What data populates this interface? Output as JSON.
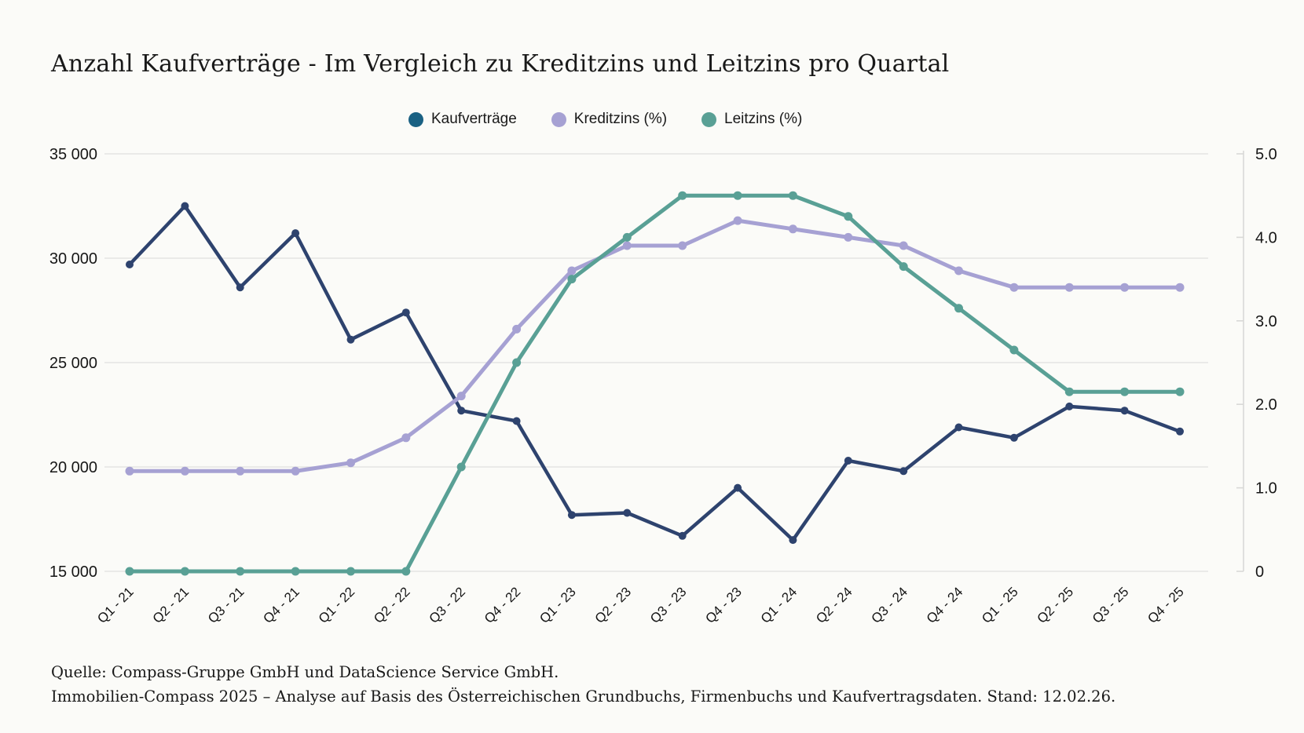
{
  "title": "Anzahl Kaufverträge - Im Vergleich zu Kreditzins und Leitzins pro Quartal",
  "legend": {
    "items": [
      {
        "label": "Kaufverträge",
        "color": "#1A6183"
      },
      {
        "label": "Kreditzins (%)",
        "color": "#A6A1D3"
      },
      {
        "label": "Leitzins (%)",
        "color": "#59A095"
      }
    ]
  },
  "chart_data": {
    "type": "line",
    "title": "Anzahl Kaufverträge - Im Vergleich zu Kreditzins und Leitzins pro Quartal",
    "categories": [
      "Q1 - 21",
      "Q2 - 21",
      "Q3 - 21",
      "Q4 - 21",
      "Q1 - 22",
      "Q2 - 22",
      "Q3 - 22",
      "Q4 - 22",
      "Q1 - 23",
      "Q2 - 23",
      "Q3 - 23",
      "Q4 - 23",
      "Q1 - 24",
      "Q2 - 24",
      "Q3 - 24",
      "Q4 - 24",
      "Q1 - 25",
      "Q2 - 25",
      "Q3 - 25",
      "Q4 - 25"
    ],
    "series": [
      {
        "name": "Kaufverträge",
        "axis": "left",
        "color": "#2E436E",
        "values": [
          29700,
          32500,
          28600,
          31200,
          26100,
          27400,
          22700,
          22200,
          17700,
          17800,
          16700,
          19000,
          16500,
          20300,
          19800,
          21900,
          21400,
          22900,
          22700,
          21700
        ]
      },
      {
        "name": "Kreditzins (%)",
        "axis": "right",
        "color": "#A6A1D3",
        "values": [
          1.2,
          1.2,
          1.2,
          1.2,
          1.3,
          1.6,
          2.1,
          2.9,
          3.6,
          3.9,
          3.9,
          4.2,
          4.1,
          4.0,
          3.9,
          3.6,
          3.4,
          3.4,
          3.4,
          3.4
        ]
      },
      {
        "name": "Leitzins (%)",
        "axis": "right",
        "color": "#59A095",
        "values": [
          0,
          0,
          0,
          0,
          0,
          0,
          1.25,
          2.5,
          3.5,
          4.0,
          4.5,
          4.5,
          4.5,
          4.25,
          3.65,
          3.15,
          2.65,
          2.15,
          2.15,
          2.15
        ]
      }
    ],
    "left_axis": {
      "min": 15000,
      "max": 35000,
      "step": 5000,
      "tick_labels": [
        "15 000",
        "20 000",
        "25 000",
        "30 000",
        "35 000"
      ]
    },
    "right_axis": {
      "min": 0,
      "max": 5,
      "step": 1,
      "tick_labels": [
        "0",
        "1.0",
        "2.0",
        "3.0",
        "4.0",
        "5.0"
      ]
    },
    "grid": true,
    "legend_position": "top"
  },
  "footer": {
    "lines": [
      "Quelle: Compass-Gruppe GmbH und DataScience Service GmbH.",
      "Immobilien-Compass 2025 – Analyse auf Basis des Österreichischen Grundbuchs, Firmenbuchs und Kaufvertragsdaten. Stand: 12.02.26."
    ]
  }
}
